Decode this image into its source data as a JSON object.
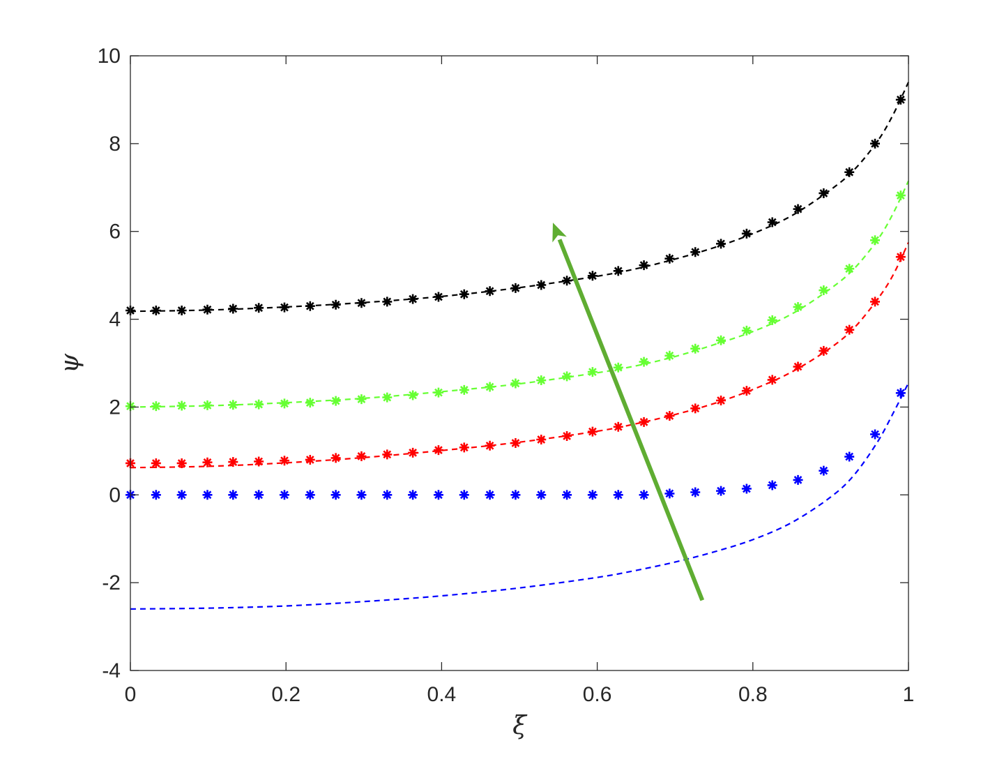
{
  "chart_data": {
    "type": "line",
    "title": "",
    "xlabel": "ξ",
    "ylabel": "ψ",
    "xlim": [
      0,
      1
    ],
    "ylim": [
      -4,
      10
    ],
    "xticks": [
      0,
      0.2,
      0.4,
      0.6,
      0.8,
      1
    ],
    "xtick_labels": [
      "0",
      "0.2",
      "0.4",
      "0.6",
      "0.8",
      "1"
    ],
    "yticks": [
      -4,
      -2,
      0,
      2,
      4,
      6,
      8,
      10
    ],
    "ytick_labels": [
      "-4",
      "-2",
      "0",
      "2",
      "4",
      "6",
      "8",
      "10"
    ],
    "grid": false,
    "legend": "none",
    "marker_x": [
      0,
      0.033,
      0.066,
      0.099,
      0.132,
      0.165,
      0.198,
      0.231,
      0.264,
      0.297,
      0.33,
      0.363,
      0.396,
      0.429,
      0.462,
      0.495,
      0.528,
      0.561,
      0.594,
      0.627,
      0.66,
      0.693,
      0.726,
      0.759,
      0.792,
      0.825,
      0.858,
      0.891,
      0.924,
      0.957,
      0.99
    ],
    "curve_x": [
      0,
      0.1,
      0.2,
      0.3,
      0.4,
      0.5,
      0.6,
      0.65,
      0.7,
      0.75,
      0.8,
      0.85,
      0.9,
      0.93,
      0.96,
      0.98,
      1.0
    ],
    "series": [
      {
        "color": "#0000ff",
        "curve": [
          -2.6,
          -2.58,
          -2.53,
          -2.43,
          -2.3,
          -2.12,
          -1.88,
          -1.72,
          -1.53,
          -1.3,
          -1.02,
          -0.63,
          -0.05,
          0.45,
          1.2,
          1.85,
          2.55
        ],
        "markers": [
          0.0,
          0.0,
          0.0,
          0.0,
          0.0,
          0.0,
          0.0,
          0.0,
          0.0,
          0.0,
          0.0,
          0.0,
          0.0,
          0.0,
          0.0,
          0.0,
          0.0,
          0.0,
          0.0,
          0.0,
          0.0,
          0.03,
          0.06,
          0.09,
          0.14,
          0.22,
          0.34,
          0.55,
          0.87,
          1.38,
          2.32
        ]
      },
      {
        "color": "#ff0000",
        "curve": [
          0.62,
          0.65,
          0.73,
          0.85,
          1.01,
          1.2,
          1.45,
          1.62,
          1.83,
          2.08,
          2.4,
          2.8,
          3.35,
          3.8,
          4.45,
          5.0,
          5.75
        ],
        "markers": [
          0.72,
          0.72,
          0.72,
          0.74,
          0.75,
          0.76,
          0.78,
          0.8,
          0.84,
          0.88,
          0.92,
          0.96,
          1.02,
          1.08,
          1.12,
          1.18,
          1.26,
          1.34,
          1.44,
          1.55,
          1.66,
          1.8,
          1.97,
          2.15,
          2.37,
          2.62,
          2.92,
          3.28,
          3.76,
          4.4,
          5.42
        ]
      },
      {
        "color": "#66ff33",
        "curve": [
          2.0,
          2.03,
          2.1,
          2.2,
          2.35,
          2.53,
          2.78,
          2.94,
          3.15,
          3.42,
          3.72,
          4.12,
          4.7,
          5.15,
          5.8,
          6.4,
          7.15
        ],
        "markers": [
          2.02,
          2.02,
          2.03,
          2.04,
          2.05,
          2.06,
          2.08,
          2.1,
          2.14,
          2.18,
          2.22,
          2.27,
          2.33,
          2.39,
          2.46,
          2.54,
          2.61,
          2.7,
          2.8,
          2.9,
          3.03,
          3.17,
          3.33,
          3.52,
          3.74,
          3.98,
          4.28,
          4.66,
          5.15,
          5.8,
          6.82
        ]
      },
      {
        "color": "#000000",
        "curve": [
          4.18,
          4.21,
          4.28,
          4.38,
          4.52,
          4.72,
          4.98,
          5.15,
          5.37,
          5.63,
          5.95,
          6.36,
          6.95,
          7.4,
          8.05,
          8.65,
          9.4
        ],
        "markers": [
          4.2,
          4.2,
          4.2,
          4.22,
          4.24,
          4.26,
          4.27,
          4.3,
          4.33,
          4.37,
          4.4,
          4.46,
          4.51,
          4.57,
          4.64,
          4.71,
          4.78,
          4.88,
          4.99,
          5.1,
          5.23,
          5.38,
          5.53,
          5.72,
          5.95,
          6.21,
          6.51,
          6.87,
          7.35,
          8.0,
          9.0
        ]
      }
    ],
    "annotation": {
      "type": "arrow",
      "color": "#5fad32",
      "from": [
        0.735,
        -2.4
      ],
      "to": [
        0.543,
        6.2
      ]
    }
  }
}
